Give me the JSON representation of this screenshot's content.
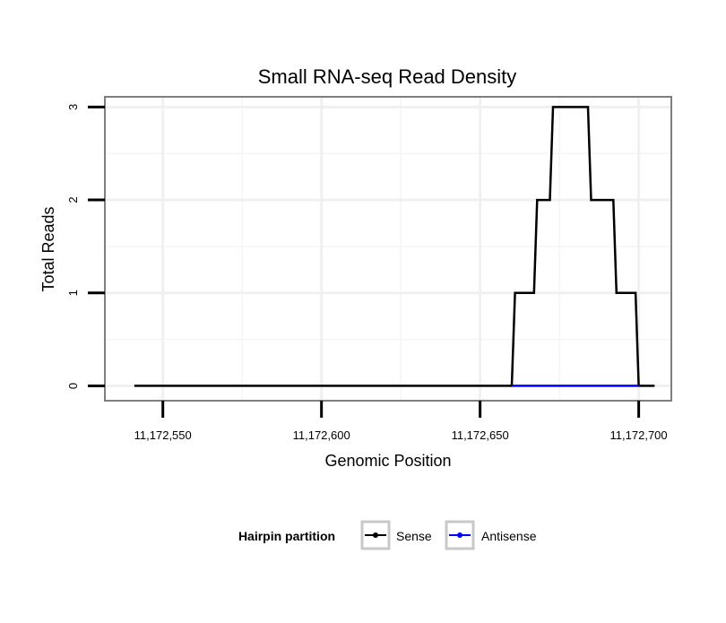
{
  "chart_data": {
    "type": "line",
    "title": "Small RNA-seq Read Density",
    "xlabel": "Genomic Position",
    "ylabel": "Total Reads",
    "xlim": [
      11172532,
      11172710
    ],
    "ylim": [
      -0.15,
      3.1
    ],
    "x_ticks": [
      11172550,
      11172600,
      11172650,
      11172700
    ],
    "x_tick_labels": [
      "11,172,550",
      "11,172,600",
      "11,172,650",
      "11,172,700"
    ],
    "y_ticks": [
      0,
      1,
      2,
      3
    ],
    "y_tick_labels": [
      "0",
      "1",
      "2",
      "3"
    ],
    "grid": true,
    "legend": {
      "title": "Hairpin partition",
      "position": "bottom",
      "entries": [
        "Sense",
        "Antisense"
      ]
    },
    "series": [
      {
        "name": "Sense",
        "color": "#000000",
        "x": [
          11172541,
          11172660,
          11172661,
          11172667,
          11172668,
          11172672,
          11172673,
          11172684,
          11172685,
          11172692,
          11172693,
          11172699,
          11172700,
          11172705
        ],
        "y": [
          0,
          0,
          1,
          1,
          2,
          2,
          3,
          3,
          2,
          2,
          1,
          1,
          0,
          0
        ]
      },
      {
        "name": "Antisense",
        "color": "#0000ff",
        "x": [
          11172660,
          11172700
        ],
        "y": [
          0,
          0
        ]
      }
    ]
  }
}
